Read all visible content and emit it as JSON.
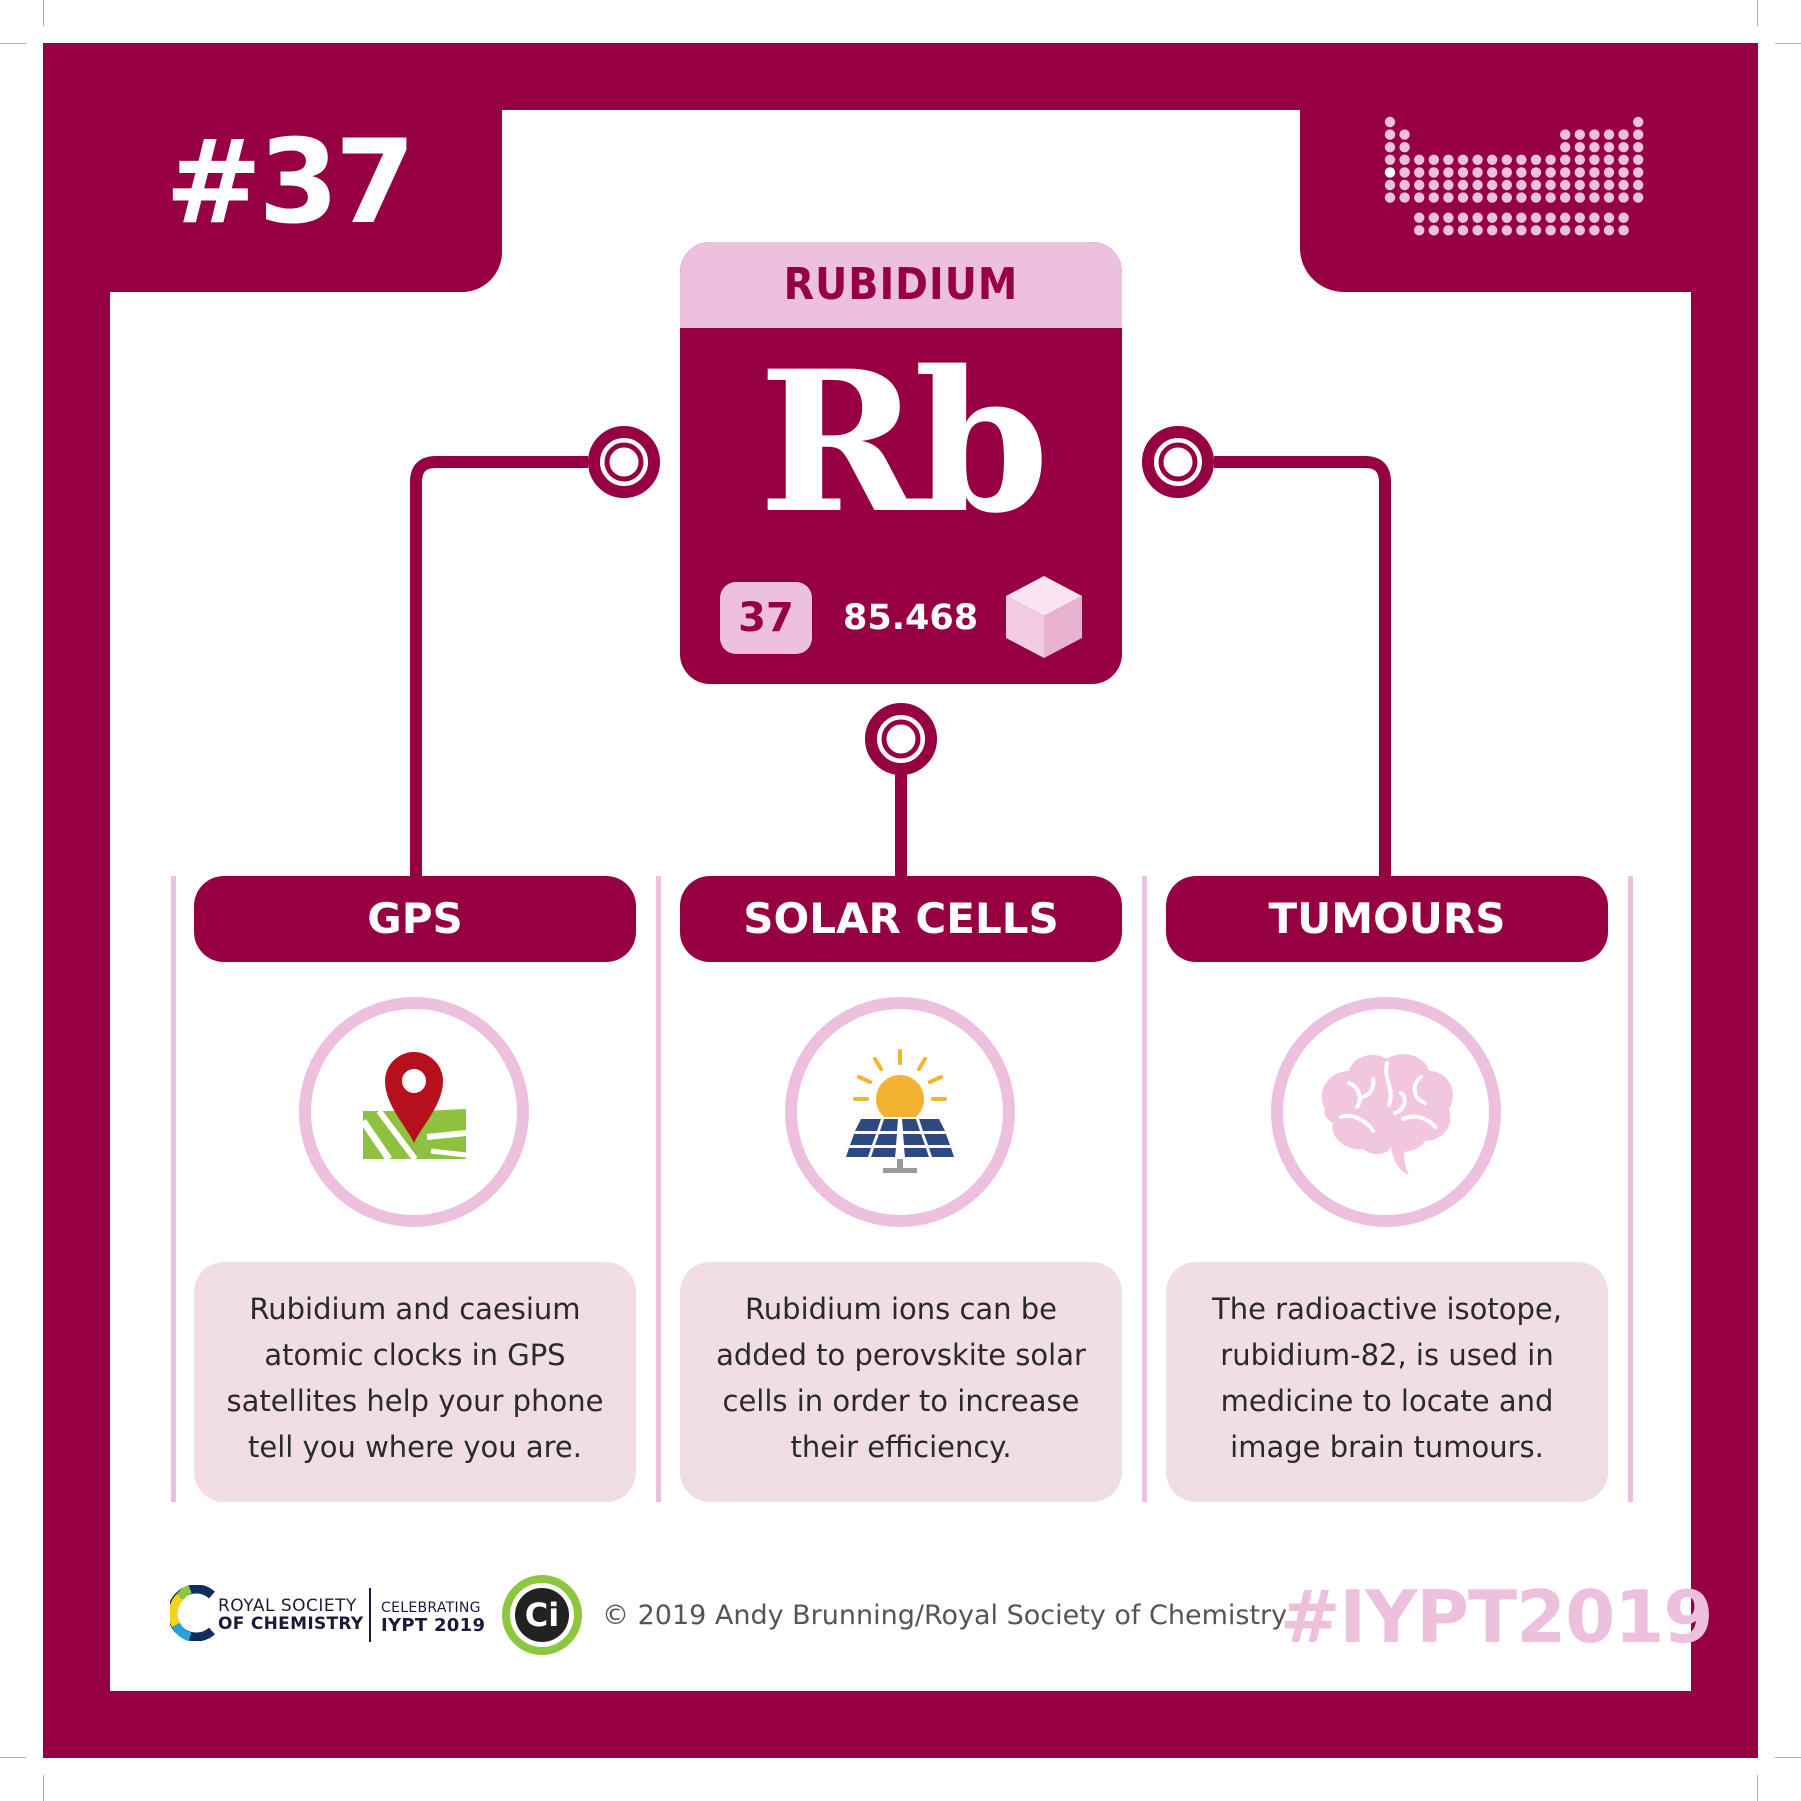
{
  "card": {
    "issue_number": "#37",
    "colors": {
      "primary": "#960042",
      "light_pink": "#edc1dd",
      "box_pink": "#f1dde6"
    }
  },
  "element": {
    "name": "RUBIDIUM",
    "symbol": "Rb",
    "atomic_number": "37",
    "atomic_mass": "85.468",
    "state_icon": "cube-icon"
  },
  "uses": [
    {
      "title": "GPS",
      "icon": "map-pin-icon",
      "description": "Rubidium and caesium atomic clocks in GPS satellites help your phone tell you where you are."
    },
    {
      "title": "SOLAR CELLS",
      "icon": "solar-panel-icon",
      "description": "Rubidium ions can be added to perovskite solar cells in order to increase their efficiency."
    },
    {
      "title": "TUMOURS",
      "icon": "brain-icon",
      "description": "The radioactive isotope, rubidium-82, is used in medicine to locate and image brain tumours."
    }
  ],
  "footer": {
    "rsc_line1": "ROYAL SOCIETY",
    "rsc_line2": "OF CHEMISTRY",
    "iypt_line1": "CELEBRATING",
    "iypt_line2": "IYPT 2019",
    "ci_logo_text": "Ci",
    "copyright": "© 2019 Andy Brunning/Royal Society of Chemistry",
    "hashtag": "#IYPT2019"
  }
}
